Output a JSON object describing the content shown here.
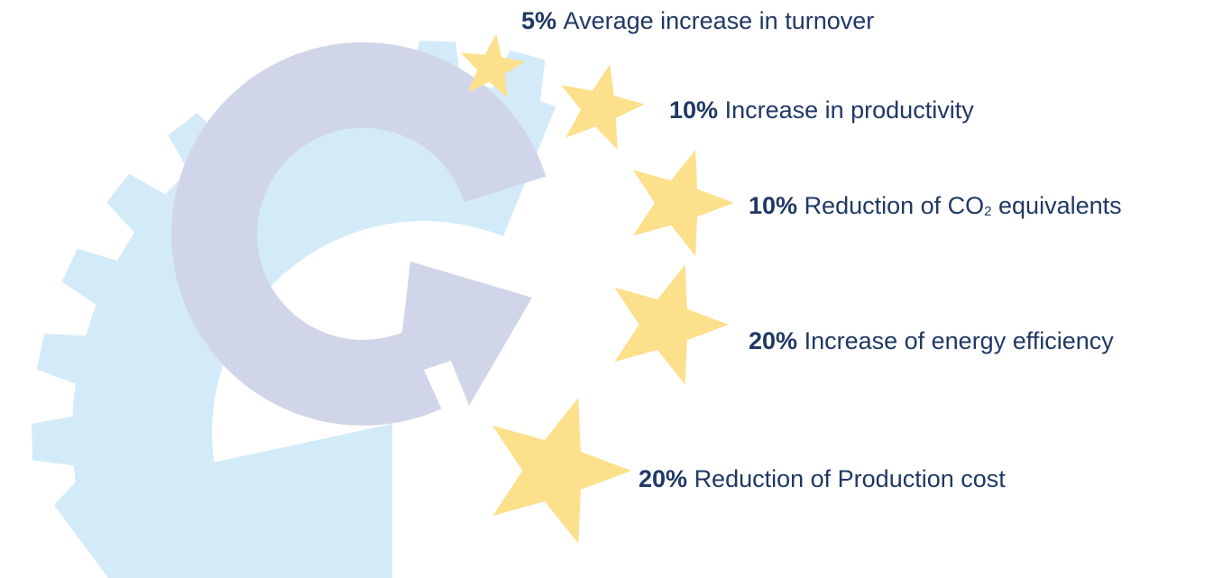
{
  "items": [
    {
      "value": "5%",
      "text": "Average increase in turnover"
    },
    {
      "value": "10%",
      "text": "Increase in productivity"
    },
    {
      "value": "10%",
      "text": "Reduction of CO",
      "sub": "2",
      "after": " equivalents"
    },
    {
      "value": "20%",
      "text": "Increase of energy efficiency"
    },
    {
      "value": "20%",
      "text": "Reduction of Production cost"
    }
  ]
}
